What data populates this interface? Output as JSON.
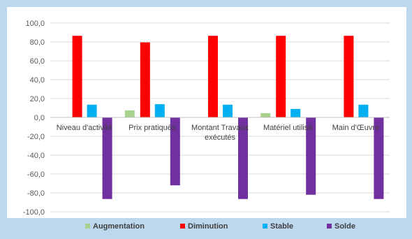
{
  "chart_data": {
    "type": "bar",
    "title": "",
    "xlabel": "",
    "ylabel": "",
    "ylim": [
      -100,
      100
    ],
    "y_ticks": [
      "100,0",
      "80,0",
      "60,0",
      "40,0",
      "20,0",
      "0,0",
      "-20,0",
      "-40,0",
      "-60,0",
      "-80,0",
      "-100,0"
    ],
    "y_tick_values": [
      100,
      80,
      60,
      40,
      20,
      0,
      -20,
      -40,
      -60,
      -80,
      -100
    ],
    "categories": [
      [
        "Niveau d'activité"
      ],
      [
        "Prix pratiqués"
      ],
      [
        "Montant Travaux",
        "exécutés"
      ],
      [
        "Matériel utilisé"
      ],
      [
        "Main d'Œuvre"
      ]
    ],
    "series": [
      {
        "name": "Augmentation",
        "color": "#a9d18e",
        "values": [
          0,
          7.5,
          0,
          4.5,
          0
        ]
      },
      {
        "name": "Diminution",
        "color": "#ff0000",
        "values": [
          86.5,
          79.5,
          86.5,
          86.5,
          86.5
        ]
      },
      {
        "name": "Stable",
        "color": "#00b0f0",
        "values": [
          13.5,
          14,
          13.5,
          9,
          13.5
        ]
      },
      {
        "name": "Solde",
        "color": "#7030a0",
        "values": [
          -86.5,
          -72,
          -86.5,
          -82,
          -86.5
        ]
      }
    ],
    "grid": "horizontal",
    "legend": "bottom"
  }
}
